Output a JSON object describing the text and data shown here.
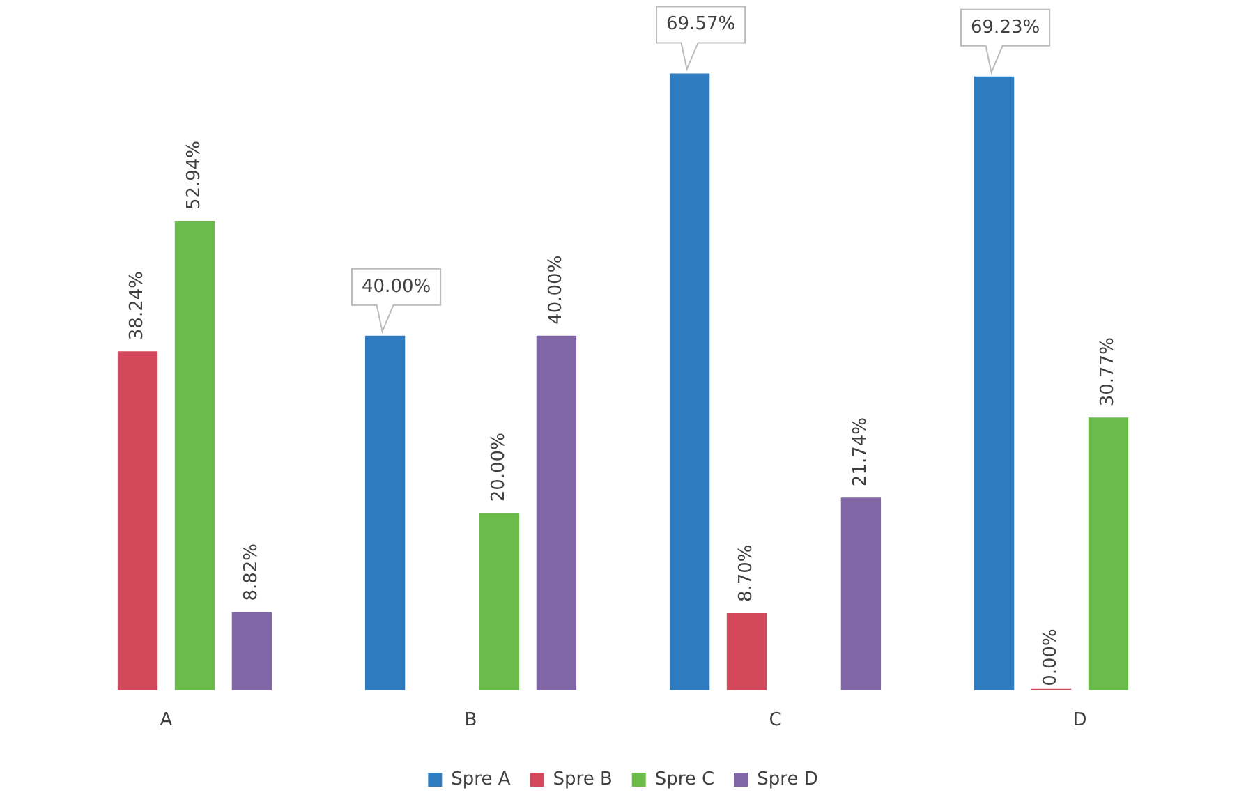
{
  "chart_data": {
    "type": "bar",
    "categories": [
      "A",
      "B",
      "C",
      "D"
    ],
    "series": [
      {
        "name": "Spre A",
        "color": "#2f7dc0",
        "values": [
          null,
          40.0,
          69.57,
          69.23
        ],
        "value_labels": [
          null,
          "40.00%",
          "69.57%",
          "69.23%"
        ]
      },
      {
        "name": "Spre B",
        "color": "#d3495b",
        "values": [
          38.24,
          null,
          8.7,
          0.0
        ],
        "value_labels": [
          "38.24%",
          null,
          "8.70%",
          "0.00%"
        ]
      },
      {
        "name": "Spre C",
        "color": "#6bbb4b",
        "values": [
          52.94,
          20.0,
          null,
          30.77
        ],
        "value_labels": [
          "52.94%",
          "20.00%",
          null,
          "30.77%"
        ]
      },
      {
        "name": "Spre D",
        "color": "#8166a8",
        "values": [
          8.82,
          40.0,
          21.74,
          null
        ],
        "value_labels": [
          "8.82%",
          "40.00%",
          "21.74%",
          null
        ]
      }
    ],
    "legend": "bottom",
    "grid": false
  }
}
